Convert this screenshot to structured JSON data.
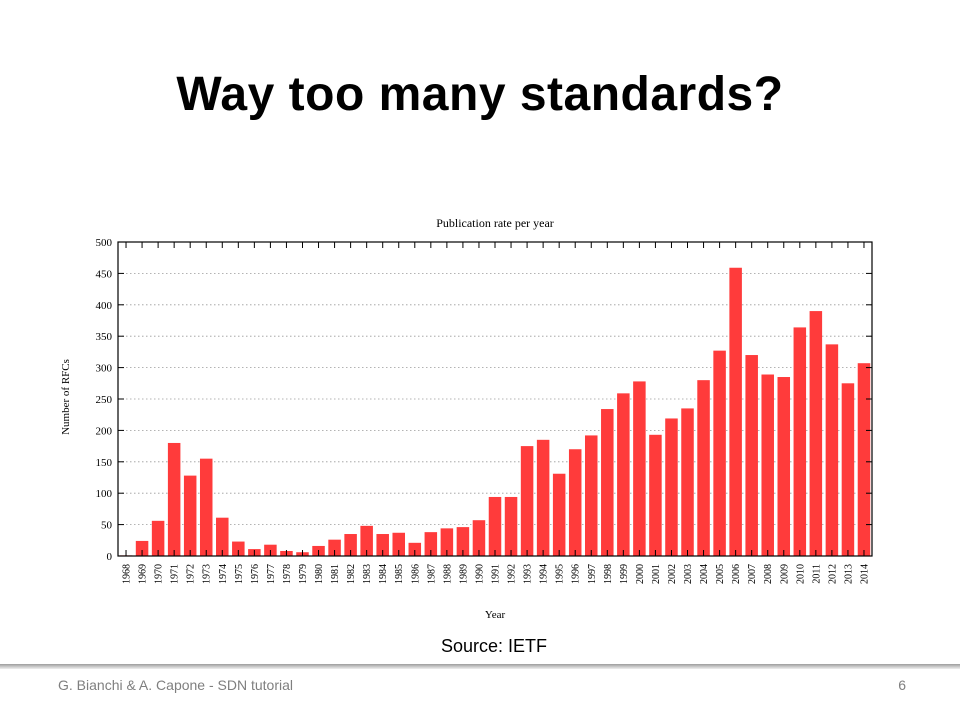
{
  "slide": {
    "title": "Way too many standards?",
    "source": "Source: IETF",
    "footer_credit": "G. Bianchi & A. Capone - SDN tutorial",
    "page_number": "6"
  },
  "colors": {
    "bar": "#ff3b3b",
    "grid": "#9a9a9a",
    "axis": "#000000"
  },
  "chart_data": {
    "type": "bar",
    "title": "Publication rate per year",
    "xlabel": "Year",
    "ylabel": "Number of RFCs",
    "ylim": [
      0,
      500
    ],
    "yticks": [
      0,
      50,
      100,
      150,
      200,
      250,
      300,
      350,
      400,
      450,
      500
    ],
    "grid": true,
    "legend": "none",
    "categories": [
      "1968",
      "1969",
      "1970",
      "1971",
      "1972",
      "1973",
      "1974",
      "1975",
      "1976",
      "1977",
      "1978",
      "1979",
      "1980",
      "1981",
      "1982",
      "1983",
      "1984",
      "1985",
      "1986",
      "1987",
      "1988",
      "1989",
      "1990",
      "1991",
      "1992",
      "1993",
      "1994",
      "1995",
      "1996",
      "1997",
      "1998",
      "1999",
      "2000",
      "2001",
      "2002",
      "2003",
      "2004",
      "2005",
      "2006",
      "2007",
      "2008",
      "2009",
      "2010",
      "2011",
      "2012",
      "2013",
      "2014"
    ],
    "values": [
      1,
      24,
      56,
      180,
      128,
      155,
      61,
      23,
      11,
      18,
      8,
      6,
      16,
      26,
      35,
      48,
      35,
      37,
      21,
      38,
      44,
      46,
      57,
      94,
      94,
      175,
      185,
      131,
      170,
      192,
      234,
      259,
      278,
      193,
      219,
      235,
      280,
      327,
      459,
      320,
      289,
      285,
      364,
      390,
      337,
      275,
      307
    ]
  }
}
